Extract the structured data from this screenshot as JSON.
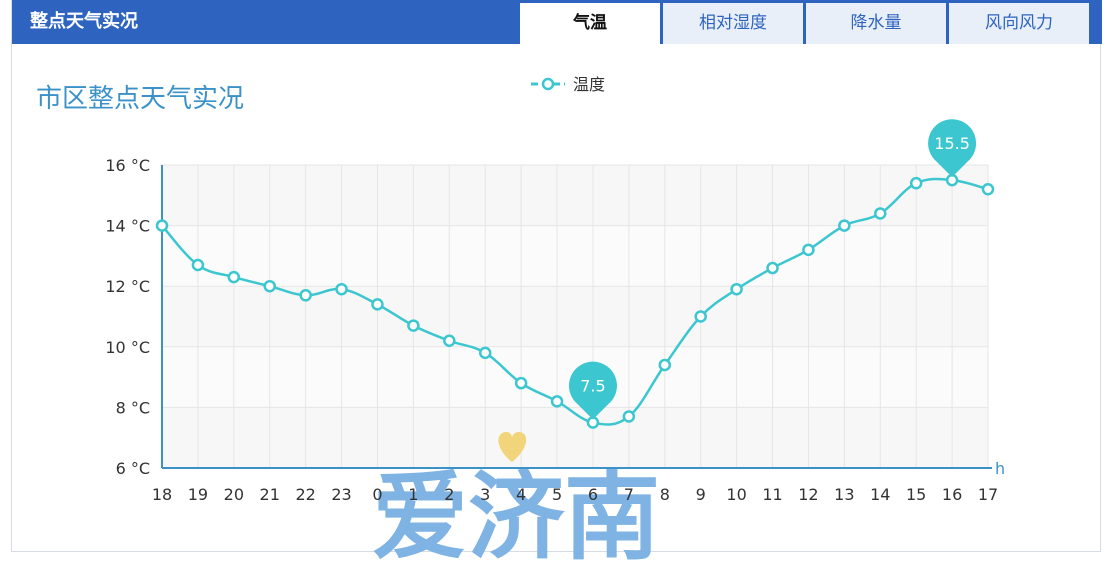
{
  "header": {
    "title": "整点天气实况",
    "tabs": [
      {
        "label": "气温",
        "active": true
      },
      {
        "label": "相对湿度",
        "active": false
      },
      {
        "label": "降水量",
        "active": false
      },
      {
        "label": "风向风力",
        "active": false
      }
    ]
  },
  "main": {
    "subtitle": "市区整点天气实况"
  },
  "watermark": "爱济南",
  "colors": {
    "header_bg": "#2e64c0",
    "series": "#3cc6cf",
    "axis": "#3a92c9"
  },
  "chart_data": {
    "type": "line",
    "categories": [
      "18",
      "19",
      "20",
      "21",
      "22",
      "23",
      "0",
      "1",
      "2",
      "3",
      "4",
      "5",
      "6",
      "7",
      "8",
      "9",
      "10",
      "11",
      "12",
      "13",
      "14",
      "15",
      "16",
      "17"
    ],
    "series": [
      {
        "name": "温度",
        "values": [
          14.0,
          12.7,
          12.3,
          12.0,
          11.7,
          11.9,
          11.4,
          10.7,
          10.2,
          9.8,
          8.8,
          8.2,
          7.5,
          7.7,
          9.4,
          11.0,
          11.9,
          12.6,
          13.2,
          14.0,
          14.4,
          15.4,
          15.5,
          15.2
        ]
      }
    ],
    "yticks": [
      "16 °C",
      "14 °C",
      "12 °C",
      "10 °C",
      "8 °C",
      "6 °C"
    ],
    "ylim": [
      6,
      16
    ],
    "x_unit": "h",
    "markers": [
      {
        "label": "7.5",
        "index": 12
      },
      {
        "label": "15.5",
        "index": 22
      }
    ],
    "legend": "top-center",
    "grid": true
  }
}
